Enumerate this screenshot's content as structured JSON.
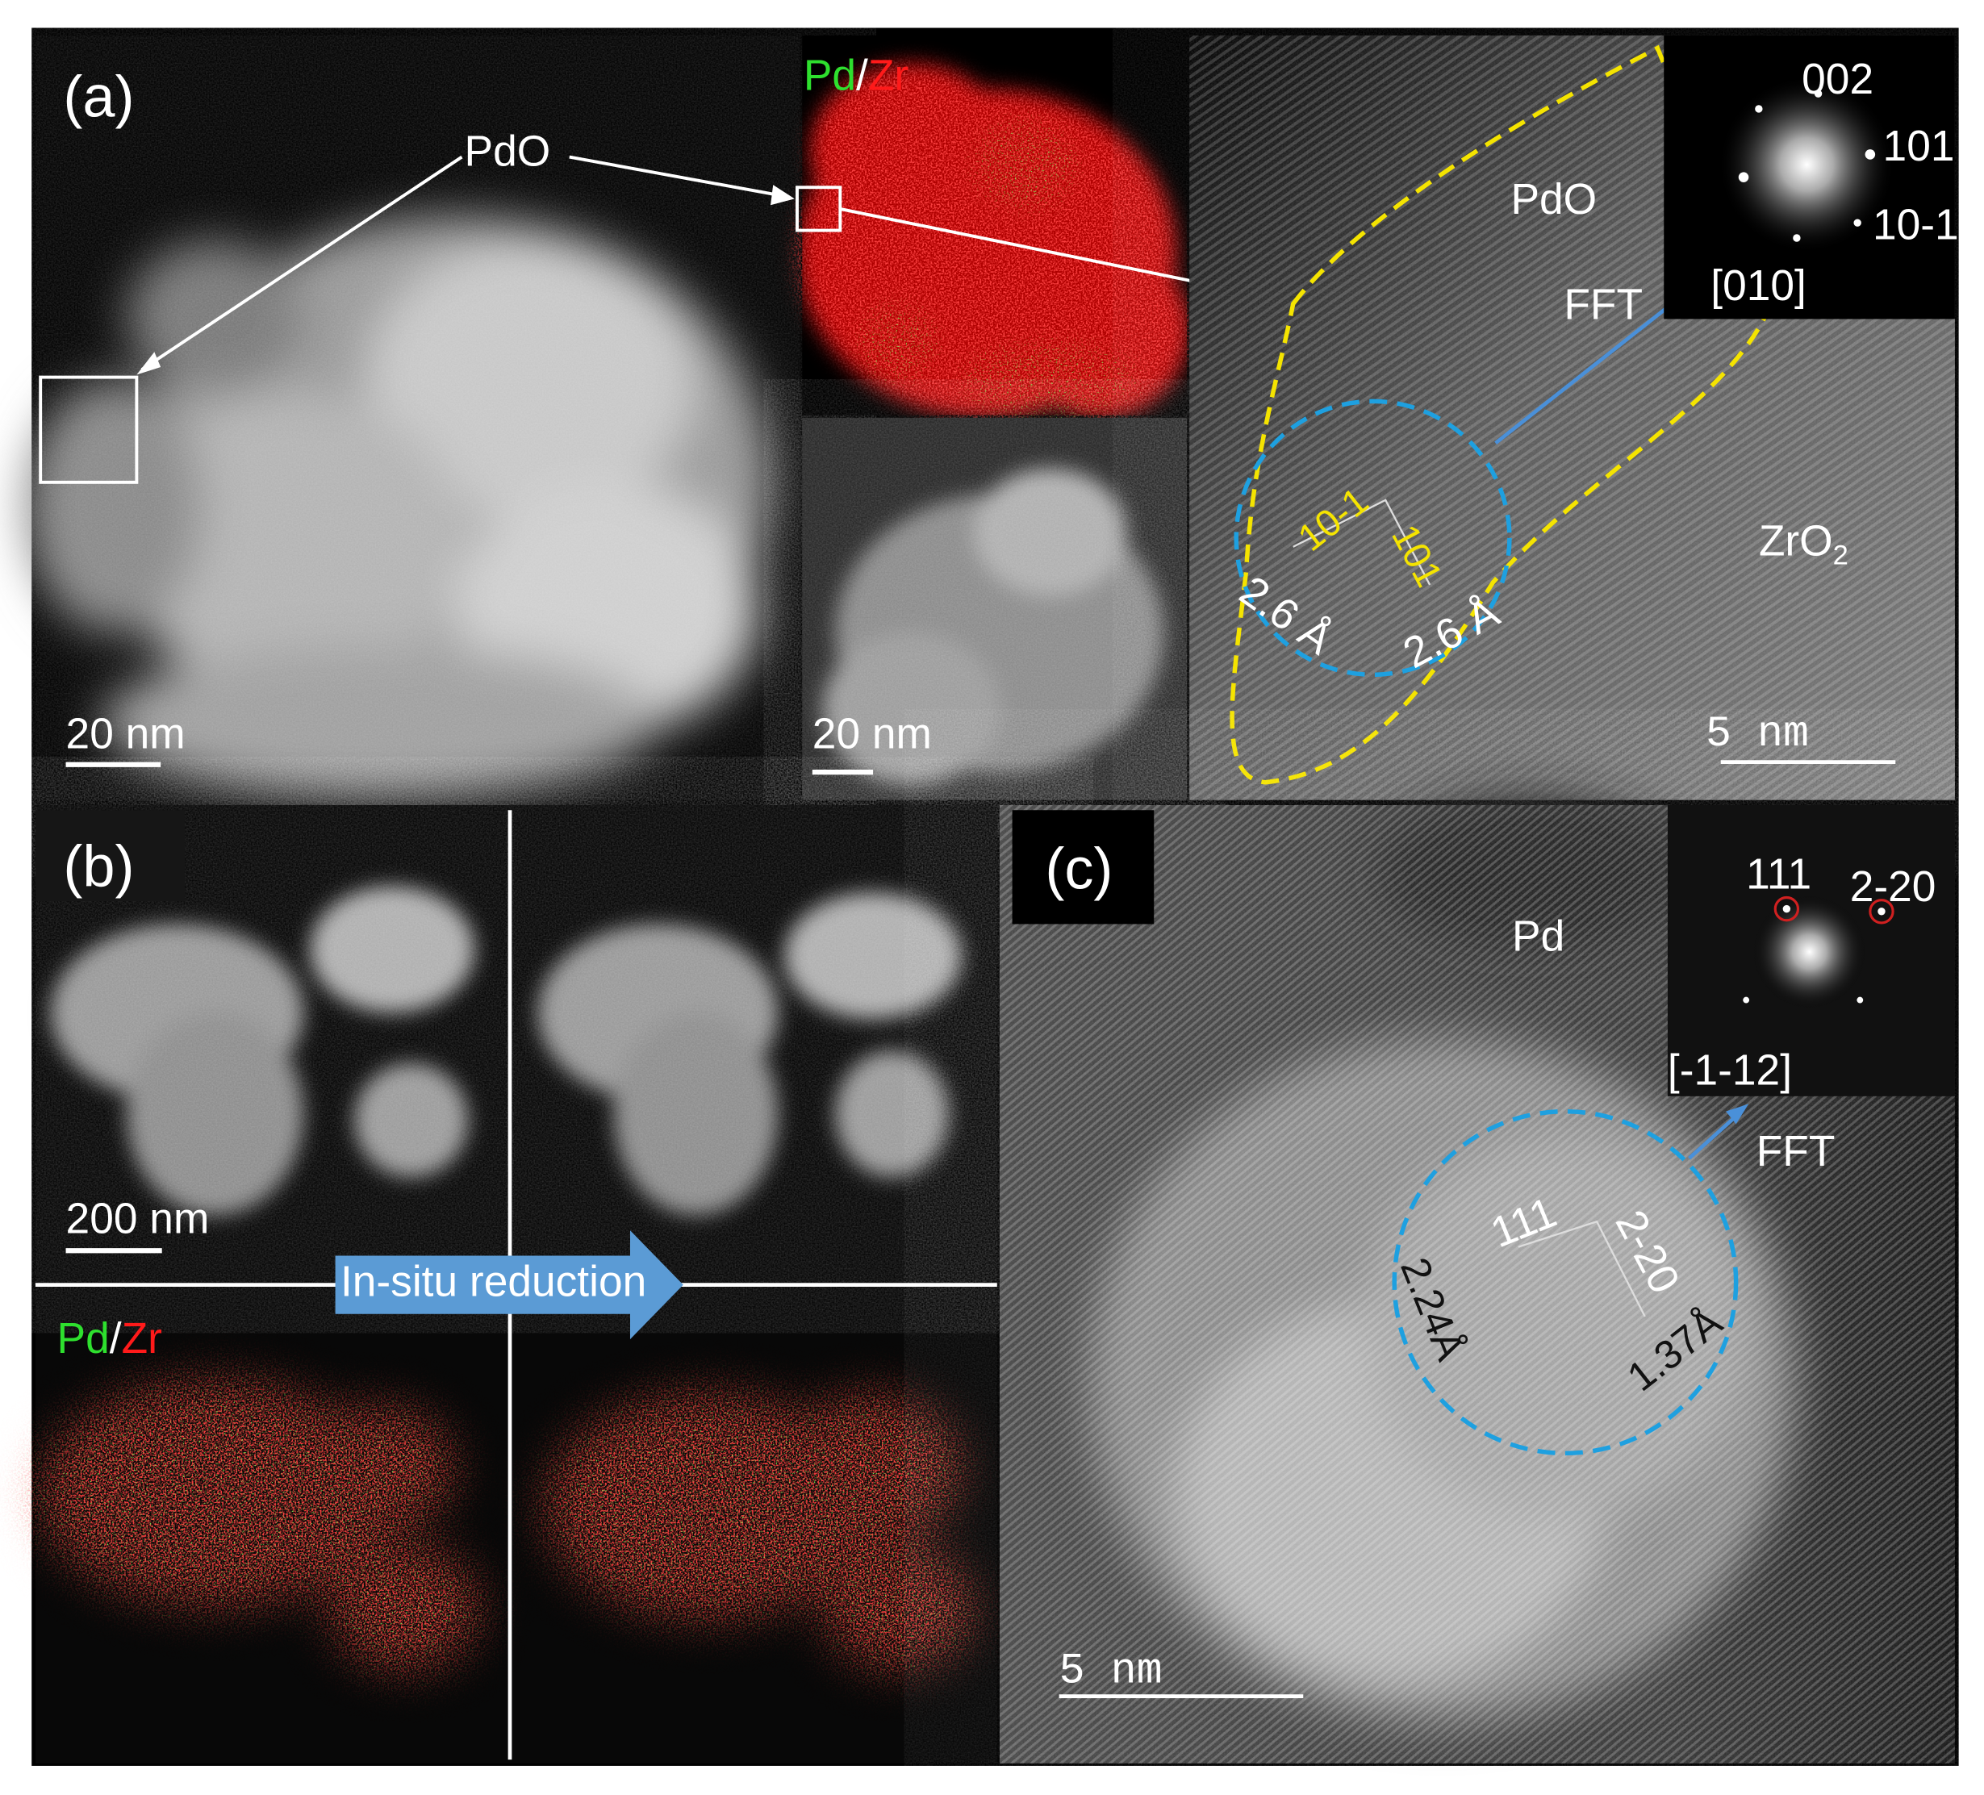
{
  "panel_a": {
    "label": "(a)",
    "stem_image": {
      "pdo_label": "PdO",
      "scale_bar": "20 nm"
    },
    "eds_map": {
      "element_1": "Pd",
      "separator": "/",
      "element_2": "Zr"
    },
    "haadf_image": {
      "scale_bar": "20 nm"
    },
    "hrtem": {
      "phase_1": "PdO",
      "phase_2": "ZrO",
      "phase_2_subscript": "2",
      "fft_label": "FFT",
      "plane_1": "10-1",
      "plane_2": "101",
      "spacing_1": "2.6 Å",
      "spacing_2": "2.6 Å",
      "scale_bar": "5 nm"
    },
    "fft_inset": {
      "spots": [
        "002",
        "101",
        "10-1"
      ],
      "zone_axis": "[010]"
    }
  },
  "panel_b": {
    "label": "(b)",
    "scale_bar": "200 nm",
    "arrow_label": "In-situ reduction",
    "eds_map": {
      "element_1": "Pd",
      "separator": "/",
      "element_2": "Zr"
    }
  },
  "panel_c": {
    "label": "(c)",
    "phase": "Pd",
    "fft_label": "FFT",
    "fft_inset": {
      "spots": [
        "111",
        "2-20"
      ],
      "zone_axis": "[-1-12]"
    },
    "plane_1": "111",
    "plane_2": "2-20",
    "spacing_1": "2.24Å",
    "spacing_2": "1.37Å",
    "scale_bar": "5 nm"
  }
}
